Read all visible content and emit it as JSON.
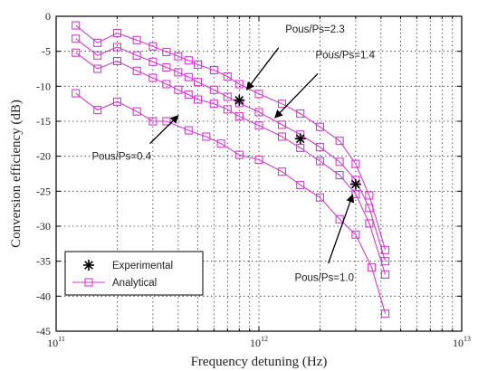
{
  "chart_data": {
    "type": "line",
    "xlabel": "Frequency detuning (Hz)",
    "ylabel": "Conversion efficiency (dB)",
    "x_scale": "log",
    "xlim": [
      100000000000,
      10000000000000
    ],
    "ylim": [
      -45,
      0
    ],
    "x_tick_labels": [
      {
        "value": 100000000000,
        "base": "10",
        "exp": "11"
      },
      {
        "value": 1000000000000,
        "base": "10",
        "exp": "12"
      },
      {
        "value": 10000000000000,
        "base": "10",
        "exp": "13"
      }
    ],
    "y_ticks": [
      0,
      -5,
      -10,
      -15,
      -20,
      -25,
      -30,
      -35,
      -40,
      -45
    ],
    "grid": true,
    "legend": {
      "placement": "bottom-left",
      "entries": [
        {
          "label": "Experimental",
          "marker": "asterisk"
        },
        {
          "label": "Analytical",
          "marker": "square-line"
        }
      ]
    },
    "colors": {
      "analytical": "#d23ad2",
      "experimental": "#000000"
    },
    "series": [
      {
        "group": "Analytical",
        "ratio": "2.3",
        "points": [
          {
            "x": 125000000000,
            "y": -1.3
          },
          {
            "x": 160000000000,
            "y": -3.8
          },
          {
            "x": 200000000000,
            "y": -2.4
          },
          {
            "x": 250000000000,
            "y": -3.4
          },
          {
            "x": 300000000000,
            "y": -4.3
          },
          {
            "x": 350000000000,
            "y": -5.1
          },
          {
            "x": 400000000000,
            "y": -5.7
          },
          {
            "x": 450000000000,
            "y": -6.3
          },
          {
            "x": 500000000000,
            "y": -6.9
          },
          {
            "x": 600000000000,
            "y": -7.7
          },
          {
            "x": 700000000000,
            "y": -8.6
          },
          {
            "x": 800000000000,
            "y": -9.7
          },
          {
            "x": 1000000000000,
            "y": -11.1
          },
          {
            "x": 1300000000000,
            "y": -12.5
          },
          {
            "x": 1600000000000,
            "y": -13.9
          },
          {
            "x": 2000000000000,
            "y": -15.8
          },
          {
            "x": 2500000000000,
            "y": -17.8
          },
          {
            "x": 3000000000000,
            "y": -21.1
          },
          {
            "x": 3500000000000,
            "y": -25.6
          },
          {
            "x": 4200000000000,
            "y": -33.4
          }
        ]
      },
      {
        "group": "Analytical",
        "ratio": "1.4",
        "points": [
          {
            "x": 125000000000,
            "y": -3.2
          },
          {
            "x": 160000000000,
            "y": -5.6
          },
          {
            "x": 200000000000,
            "y": -4.4
          },
          {
            "x": 250000000000,
            "y": -5.6
          },
          {
            "x": 300000000000,
            "y": -6.5
          },
          {
            "x": 350000000000,
            "y": -7.3
          },
          {
            "x": 400000000000,
            "y": -8.0
          },
          {
            "x": 450000000000,
            "y": -8.7
          },
          {
            "x": 500000000000,
            "y": -9.4
          },
          {
            "x": 600000000000,
            "y": -10.5
          },
          {
            "x": 700000000000,
            "y": -11.5
          },
          {
            "x": 800000000000,
            "y": -12.4
          },
          {
            "x": 1000000000000,
            "y": -13.7
          },
          {
            "x": 1300000000000,
            "y": -15.5
          },
          {
            "x": 1600000000000,
            "y": -16.9
          },
          {
            "x": 2000000000000,
            "y": -18.7
          },
          {
            "x": 2500000000000,
            "y": -20.8
          },
          {
            "x": 3000000000000,
            "y": -23.4
          },
          {
            "x": 3500000000000,
            "y": -27.4
          },
          {
            "x": 4200000000000,
            "y": -35.0
          }
        ]
      },
      {
        "group": "Analytical",
        "ratio": "1.0",
        "points": [
          {
            "x": 125000000000,
            "y": -5.2
          },
          {
            "x": 160000000000,
            "y": -7.5
          },
          {
            "x": 200000000000,
            "y": -6.4
          },
          {
            "x": 250000000000,
            "y": -7.8
          },
          {
            "x": 300000000000,
            "y": -8.8
          },
          {
            "x": 350000000000,
            "y": -9.7
          },
          {
            "x": 400000000000,
            "y": -10.5
          },
          {
            "x": 450000000000,
            "y": -11.2
          },
          {
            "x": 500000000000,
            "y": -11.9
          },
          {
            "x": 600000000000,
            "y": -12.5
          },
          {
            "x": 700000000000,
            "y": -13.3
          },
          {
            "x": 800000000000,
            "y": -14.3
          },
          {
            "x": 1000000000000,
            "y": -15.6
          },
          {
            "x": 1300000000000,
            "y": -17.2
          },
          {
            "x": 1600000000000,
            "y": -18.8
          },
          {
            "x": 2000000000000,
            "y": -20.7
          },
          {
            "x": 2500000000000,
            "y": -22.7
          },
          {
            "x": 3000000000000,
            "y": -25.4
          },
          {
            "x": 3500000000000,
            "y": -29.6
          },
          {
            "x": 4200000000000,
            "y": -36.9
          }
        ]
      },
      {
        "group": "Analytical",
        "ratio": "0.4",
        "points": [
          {
            "x": 125000000000,
            "y": -11.0
          },
          {
            "x": 160000000000,
            "y": -13.4
          },
          {
            "x": 200000000000,
            "y": -12.2
          },
          {
            "x": 250000000000,
            "y": -13.6
          },
          {
            "x": 300000000000,
            "y": -15.0
          },
          {
            "x": 350000000000,
            "y": -15.0
          },
          {
            "x": 450000000000,
            "y": -16.3
          },
          {
            "x": 550000000000,
            "y": -17.2
          },
          {
            "x": 650000000000,
            "y": -18.2
          },
          {
            "x": 800000000000,
            "y": -19.8
          },
          {
            "x": 1000000000000,
            "y": -20.5
          },
          {
            "x": 1300000000000,
            "y": -22.2
          },
          {
            "x": 1600000000000,
            "y": -24.1
          },
          {
            "x": 2000000000000,
            "y": -25.9
          },
          {
            "x": 2500000000000,
            "y": -29.0
          },
          {
            "x": 3000000000000,
            "y": -31.2
          },
          {
            "x": 3600000000000,
            "y": -35.9
          },
          {
            "x": 4200000000000,
            "y": -42.5
          }
        ]
      }
    ],
    "experimental_points": [
      {
        "x": 800000000000,
        "y": -12.0
      },
      {
        "x": 1600000000000,
        "y": -17.5
      },
      {
        "x": 3000000000000,
        "y": -24.0
      }
    ],
    "annotations": [
      {
        "text": "Pous/Ps=2.3",
        "x": 1350000000000,
        "y": -2.3,
        "anchor": "start",
        "arrow_from": {
          "x": 1250000000000,
          "y": -4.5
        },
        "arrow_to": {
          "x": 870000000000,
          "y": -10.5
        }
      },
      {
        "text": "Pous/Ps=1.4",
        "x": 1900000000000,
        "y": -6.0,
        "anchor": "start",
        "arrow_from": {
          "x": 1950000000000,
          "y": -8.2
        },
        "arrow_to": {
          "x": 1200000000000,
          "y": -14.5
        }
      },
      {
        "text": "Pous/Ps=0.4",
        "x": 150000000000,
        "y": -20.5,
        "anchor": "start",
        "arrow_from": {
          "x": 290000000000,
          "y": -18.2
        },
        "arrow_to": {
          "x": 400000000000,
          "y": -14.2
        }
      },
      {
        "text": "Pous/Ps=1.0",
        "x": 1500000000000,
        "y": -37.8,
        "anchor": "start",
        "arrow_from": {
          "x": 2200000000000,
          "y": -35.3
        },
        "arrow_to": {
          "x": 2900000000000,
          "y": -25.5
        }
      }
    ]
  }
}
